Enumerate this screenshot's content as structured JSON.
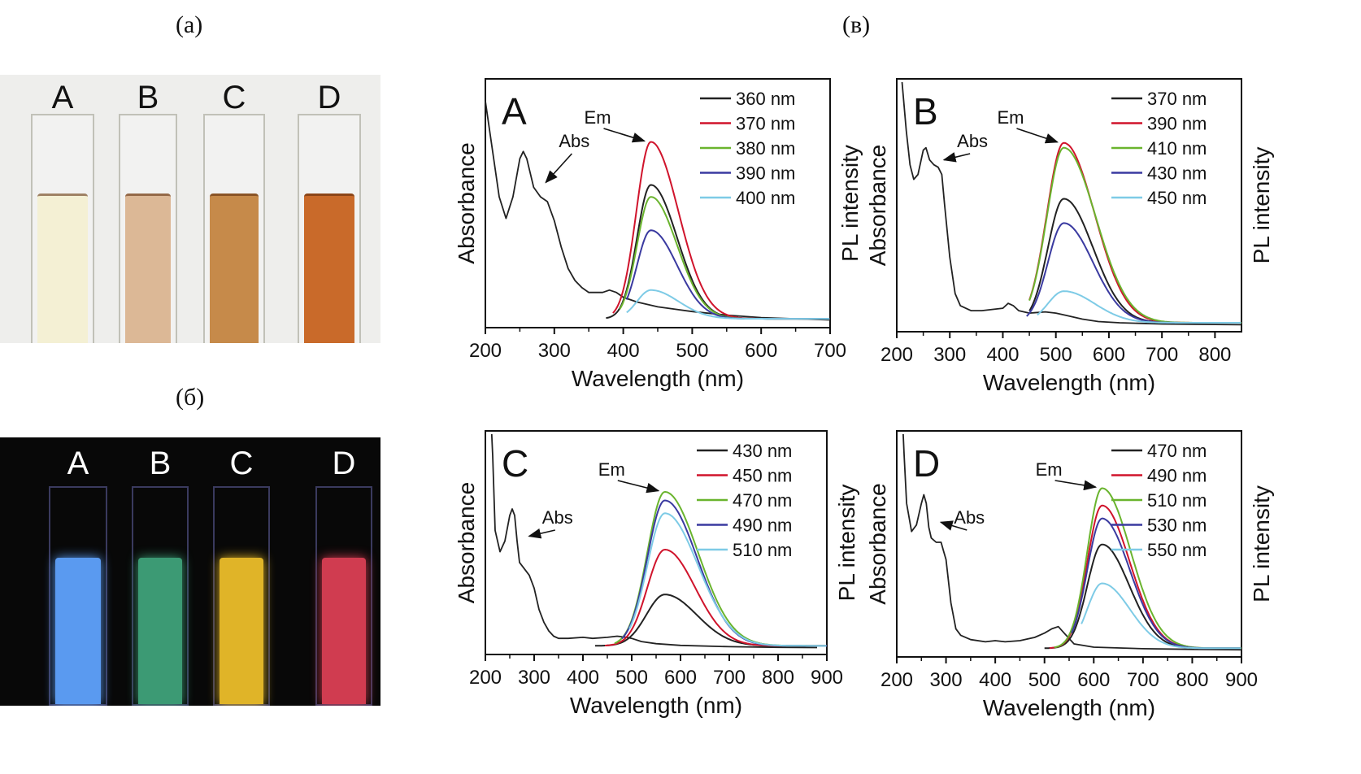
{
  "captions": {
    "a": "(a)",
    "b": "(б)",
    "c": "(в)"
  },
  "photos": {
    "daylight": {
      "labels": [
        "A",
        "B",
        "C",
        "D"
      ],
      "solution_colors": [
        "#f4f0d4",
        "#dcb896",
        "#c68a4a",
        "#c96a2a"
      ],
      "background": "#eeeeec"
    },
    "uv": {
      "labels": [
        "A",
        "B",
        "C",
        "D"
      ],
      "solution_colors": [
        "#5a9af0",
        "#3c9a74",
        "#e0b428",
        "#d03c50"
      ],
      "background": "#080808"
    }
  },
  "series_colors": [
    "#222222",
    "#d0142c",
    "#6ab42e",
    "#3a3aa0",
    "#7ecbe6"
  ],
  "chart_data": [
    {
      "type": "line",
      "panel_label": "A",
      "xlabel": "Wavelength (nm)",
      "ylabel_left": "Absorbance",
      "ylabel_right": "PL intensity",
      "xlim": [
        200,
        700
      ],
      "xticks": [
        200,
        300,
        400,
        500,
        600,
        700
      ],
      "annotations": {
        "abs": "Abs",
        "em": "Em"
      },
      "absorbance": {
        "x": [
          200,
          210,
          220,
          230,
          240,
          250,
          255,
          260,
          270,
          280,
          290,
          300,
          310,
          320,
          330,
          340,
          350,
          360,
          370,
          380,
          390,
          400,
          420,
          450,
          500,
          550,
          600,
          650,
          700
        ],
        "y": [
          0.92,
          0.72,
          0.52,
          0.43,
          0.52,
          0.68,
          0.71,
          0.68,
          0.56,
          0.52,
          0.5,
          0.42,
          0.31,
          0.22,
          0.17,
          0.14,
          0.12,
          0.12,
          0.12,
          0.13,
          0.12,
          0.1,
          0.08,
          0.06,
          0.04,
          0.025,
          0.015,
          0.01,
          0.005
        ]
      },
      "emission_peak_nm": 440,
      "series": [
        {
          "name": "360 nm",
          "start": 375,
          "peak": 0.56,
          "width_l": 20,
          "width_r": 38
        },
        {
          "name": "370 nm",
          "start": 385,
          "peak": 0.74,
          "width_l": 21,
          "width_r": 40
        },
        {
          "name": "380 nm",
          "start": 395,
          "peak": 0.51,
          "width_l": 20,
          "width_r": 38
        },
        {
          "name": "390 nm",
          "start": 405,
          "peak": 0.37,
          "width_l": 20,
          "width_r": 38
        },
        {
          "name": "400 nm",
          "start": 405,
          "peak": 0.12,
          "width_l": 20,
          "width_r": 40
        }
      ]
    },
    {
      "type": "line",
      "panel_label": "B",
      "xlabel": "Wavelength (nm)",
      "ylabel_left": "Absorbance",
      "ylabel_right": "PL intensity",
      "xlim": [
        200,
        850
      ],
      "xticks": [
        200,
        300,
        400,
        500,
        600,
        700,
        800
      ],
      "annotations": {
        "abs": "Abs",
        "em": "Em"
      },
      "absorbance": {
        "x": [
          210,
          212,
          218,
          225,
          232,
          240,
          250,
          255,
          262,
          270,
          278,
          285,
          290,
          300,
          310,
          320,
          330,
          340,
          360,
          380,
          400,
          410,
          420,
          430,
          450,
          480,
          500,
          520,
          550,
          580,
          620,
          700,
          800,
          850
        ],
        "y": [
          1.0,
          0.95,
          0.8,
          0.66,
          0.6,
          0.62,
          0.72,
          0.73,
          0.68,
          0.66,
          0.65,
          0.62,
          0.5,
          0.28,
          0.13,
          0.08,
          0.07,
          0.06,
          0.06,
          0.065,
          0.07,
          0.09,
          0.08,
          0.06,
          0.05,
          0.055,
          0.05,
          0.04,
          0.025,
          0.015,
          0.01,
          0.005,
          0.003,
          0.002
        ]
      },
      "emission_peak_nm": 515,
      "series": [
        {
          "name": "370 nm",
          "start": 450,
          "peak": 0.51,
          "width_l": 30,
          "width_r": 55
        },
        {
          "name": "390 nm",
          "start": 450,
          "peak": 0.74,
          "width_l": 32,
          "width_r": 58
        },
        {
          "name": "410 nm",
          "start": 450,
          "peak": 0.72,
          "width_l": 32,
          "width_r": 60
        },
        {
          "name": "430 nm",
          "start": 445,
          "peak": 0.41,
          "width_l": 30,
          "width_r": 55
        },
        {
          "name": "450 nm",
          "start": 465,
          "peak": 0.13,
          "width_l": 30,
          "width_r": 58
        }
      ]
    },
    {
      "type": "line",
      "panel_label": "C",
      "xlabel": "Wavelength (nm)",
      "ylabel_left": "Absorbance",
      "ylabel_right": "PL intensity",
      "xlim": [
        200,
        900
      ],
      "xticks": [
        200,
        300,
        400,
        500,
        600,
        700,
        800,
        900
      ],
      "annotations": {
        "abs": "Abs",
        "em": "Em"
      },
      "absorbance": {
        "x": [
          213,
          215,
          220,
          230,
          240,
          250,
          255,
          260,
          265,
          270,
          280,
          290,
          300,
          310,
          320,
          330,
          340,
          350,
          370,
          400,
          420,
          450,
          470,
          490,
          500,
          520,
          550,
          600,
          700,
          800,
          880
        ],
        "y": [
          1.0,
          0.9,
          0.55,
          0.45,
          0.5,
          0.62,
          0.65,
          0.62,
          0.5,
          0.4,
          0.37,
          0.34,
          0.28,
          0.18,
          0.12,
          0.08,
          0.055,
          0.045,
          0.045,
          0.05,
          0.045,
          0.05,
          0.055,
          0.05,
          0.045,
          0.03,
          0.02,
          0.012,
          0.006,
          0.003,
          0.002
        ]
      },
      "emission_peak_nm": 568,
      "series": [
        {
          "name": "430 nm",
          "start": 425,
          "peak": 0.24,
          "width_l": 38,
          "width_r": 65
        },
        {
          "name": "450 nm",
          "start": 445,
          "peak": 0.45,
          "width_l": 36,
          "width_r": 62
        },
        {
          "name": "470 nm",
          "start": 465,
          "peak": 0.72,
          "width_l": 36,
          "width_r": 68
        },
        {
          "name": "490 nm",
          "start": 480,
          "peak": 0.68,
          "width_l": 36,
          "width_r": 66
        },
        {
          "name": "510 nm",
          "start": 495,
          "peak": 0.62,
          "width_l": 36,
          "width_r": 68
        }
      ]
    },
    {
      "type": "line",
      "panel_label": "D",
      "xlabel": "Wavelength (nm)",
      "ylabel_left": "Absorbance",
      "ylabel_right": "PL intensity",
      "xlim": [
        200,
        900
      ],
      "xticks": [
        200,
        300,
        400,
        500,
        600,
        700,
        800,
        900
      ],
      "annotations": {
        "abs": "Abs",
        "em": "Em"
      },
      "absorbance": {
        "x": [
          213,
          215,
          220,
          230,
          240,
          250,
          255,
          260,
          265,
          270,
          280,
          290,
          295,
          300,
          310,
          320,
          330,
          350,
          380,
          400,
          420,
          450,
          480,
          500,
          515,
          528,
          540,
          560,
          600,
          700,
          800,
          900
        ],
        "y": [
          1.0,
          0.9,
          0.68,
          0.55,
          0.58,
          0.68,
          0.72,
          0.68,
          0.57,
          0.52,
          0.5,
          0.5,
          0.46,
          0.42,
          0.22,
          0.1,
          0.07,
          0.05,
          0.04,
          0.045,
          0.04,
          0.045,
          0.06,
          0.08,
          0.1,
          0.11,
          0.08,
          0.03,
          0.015,
          0.008,
          0.005,
          0.003
        ]
      },
      "emission_peak_nm": 617,
      "series": [
        {
          "name": "470 nm",
          "start": 500,
          "peak": 0.48,
          "width_l": 30,
          "width_r": 55
        },
        {
          "name": "490 nm",
          "start": 510,
          "peak": 0.66,
          "width_l": 30,
          "width_r": 56
        },
        {
          "name": "510 nm",
          "start": 520,
          "peak": 0.74,
          "width_l": 30,
          "width_r": 58
        },
        {
          "name": "530 nm",
          "start": 555,
          "peak": 0.6,
          "width_l": 30,
          "width_r": 56
        },
        {
          "name": "550 nm",
          "start": 575,
          "peak": 0.3,
          "width_l": 30,
          "width_r": 56
        }
      ]
    }
  ]
}
